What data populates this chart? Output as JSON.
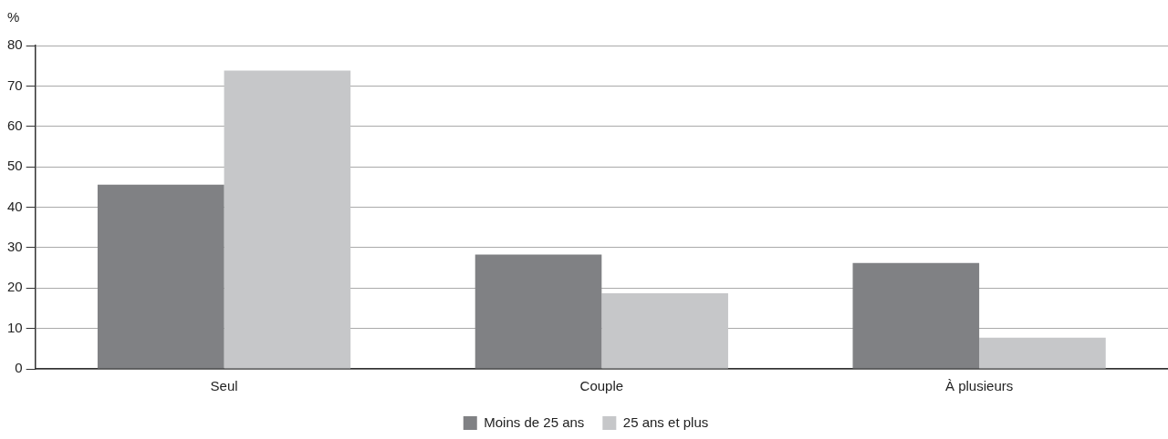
{
  "chart_data": {
    "type": "bar",
    "ylabel": "%",
    "categories": [
      "Seul",
      "Couple",
      "À plusieurs"
    ],
    "series": [
      {
        "name": "Moins de 25 ans",
        "color": "#808184",
        "values": [
          45.6,
          28.3,
          26.2
        ]
      },
      {
        "name": "25 ans et plus",
        "color": "#c6c7c9",
        "values": [
          73.8,
          18.7,
          7.7
        ]
      }
    ],
    "ylim": [
      0,
      80
    ],
    "yticks": [
      0,
      10,
      20,
      30,
      40,
      50,
      60,
      70,
      80
    ],
    "grid": "y",
    "legend": "bottom"
  }
}
